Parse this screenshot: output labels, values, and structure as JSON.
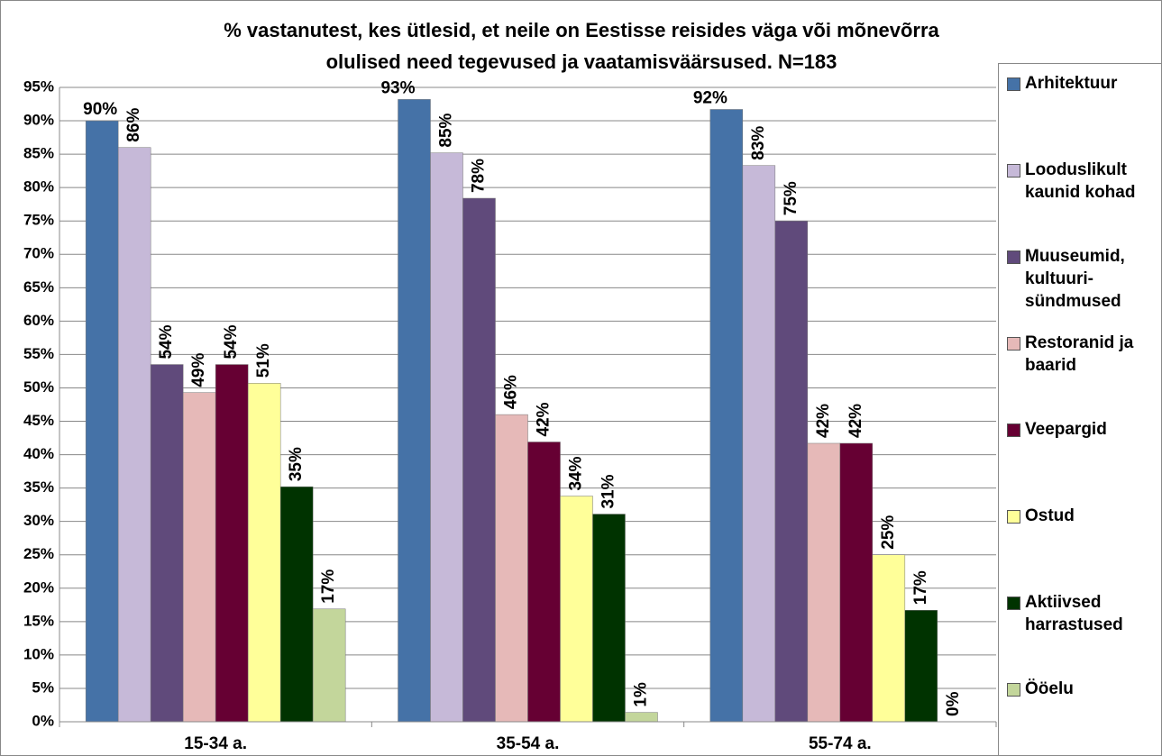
{
  "chart_data": {
    "type": "bar",
    "title": [
      "% vastanutest, kes ütlesid, et neile on Eestisse reisides väga või mõnevõrra",
      "olulised need tegevused ja vaatamisväärsused. N=183"
    ],
    "categories": [
      "15-34 a.",
      "35-54 a.",
      "55-74 a."
    ],
    "series": [
      {
        "name": "Arhitektuur",
        "color": "#4572a7",
        "values": [
          90,
          93.2,
          91.7
        ],
        "value_labels": [
          "90%",
          "93%",
          "92%"
        ]
      },
      {
        "name": "Looduslikult kaunid kohad",
        "color": "#c6b9d8",
        "values": [
          86,
          85.2,
          83.3
        ],
        "value_labels": [
          "86%",
          "85%",
          "83%"
        ]
      },
      {
        "name": "Muuseumid, kultuuri-sündmused",
        "color": "#604a7b",
        "values": [
          53.5,
          78.4,
          75
        ],
        "value_labels": [
          "54%",
          "78%",
          "75%"
        ]
      },
      {
        "name": "Restoranid ja baarid",
        "color": "#e6b9b8",
        "values": [
          49.3,
          46,
          41.7
        ],
        "value_labels": [
          "49%",
          "46%",
          "42%"
        ]
      },
      {
        "name": "Veepargid",
        "color": "#660033",
        "values": [
          53.5,
          41.9,
          41.7
        ],
        "value_labels": [
          "54%",
          "42%",
          "42%"
        ]
      },
      {
        "name": "Ostud",
        "color": "#ffff99",
        "values": [
          50.7,
          33.8,
          25
        ],
        "value_labels": [
          "51%",
          "34%",
          "25%"
        ]
      },
      {
        "name": "Aktiivsed harrastused",
        "color": "#003300",
        "values": [
          35.2,
          31.1,
          16.7
        ],
        "value_labels": [
          "35%",
          "31%",
          "17%"
        ]
      },
      {
        "name": "Ööelu",
        "color": "#c3d69b",
        "values": [
          16.9,
          1.4,
          0
        ],
        "value_labels": [
          "17%",
          "1%",
          "0%"
        ]
      }
    ],
    "ylim": [
      0,
      95
    ],
    "yticks": [
      {
        "value": 0,
        "label": "0%"
      },
      {
        "value": 5,
        "label": "5%"
      },
      {
        "value": 10,
        "label": "10%"
      },
      {
        "value": 15,
        "label": "15%"
      },
      {
        "value": 20,
        "label": "20%"
      },
      {
        "value": 25,
        "label": "25%"
      },
      {
        "value": 30,
        "label": "30%"
      },
      {
        "value": 35,
        "label": "35%"
      },
      {
        "value": 40,
        "label": "40%"
      },
      {
        "value": 45,
        "label": "45%"
      },
      {
        "value": 50,
        "label": "50%"
      },
      {
        "value": 55,
        "label": "55%"
      },
      {
        "value": 60,
        "label": "60%"
      },
      {
        "value": 65,
        "label": "65%"
      },
      {
        "value": 70,
        "label": "70%"
      },
      {
        "value": 75,
        "label": "75%"
      },
      {
        "value": 80,
        "label": "80%"
      },
      {
        "value": 85,
        "label": "85%"
      },
      {
        "value": 90,
        "label": "90%"
      },
      {
        "value": 95,
        "label": "95%"
      }
    ],
    "grid": true
  }
}
